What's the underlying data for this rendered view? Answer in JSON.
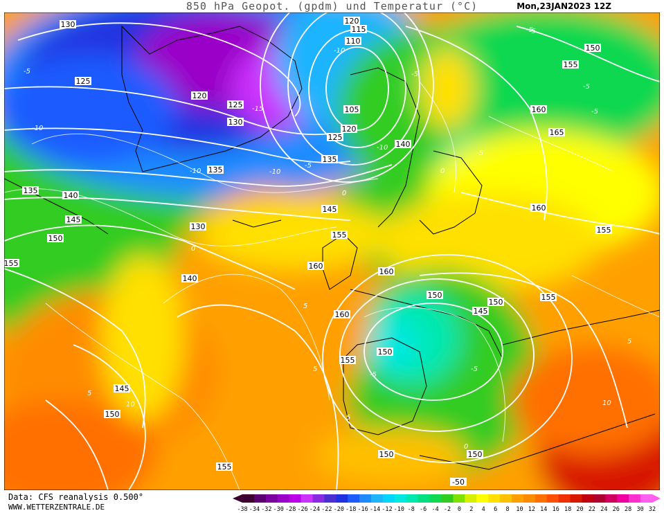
{
  "header": {
    "title": "850 hPa Geopot. (gpdm) und Temperatur (°C)",
    "date": "Mon,23JAN2023 12Z"
  },
  "footer": {
    "data_source": "Data: CFS reanalysis 0.500°",
    "website": "WWW.WETTERZENTRALE.DE"
  },
  "legend": {
    "ticks": [
      "-38",
      "-34",
      "-32",
      "-30",
      "-28",
      "-26",
      "-24",
      "-22",
      "-20",
      "-18",
      "-16",
      "-14",
      "-12",
      "-10",
      "-8",
      "-6",
      "-4",
      "-2",
      "0",
      "2",
      "4",
      "6",
      "8",
      "10",
      "12",
      "14",
      "16",
      "18",
      "20",
      "22",
      "24",
      "26",
      "28",
      "30",
      "32"
    ],
    "colors": [
      "#3d0030",
      "#5a0070",
      "#7a00a0",
      "#9a00c8",
      "#bb00e8",
      "#cc33ff",
      "#8a2be2",
      "#4b2fd0",
      "#2030e0",
      "#1e5cff",
      "#1e8cff",
      "#1eb4ff",
      "#00d4ff",
      "#00e8e0",
      "#00e8b0",
      "#00e080",
      "#10d850",
      "#30cc20",
      "#80e000",
      "#d8f000",
      "#ffff00",
      "#ffe000",
      "#ffc000",
      "#ffa000",
      "#ff8c00",
      "#ff7000",
      "#ff5000",
      "#f03000",
      "#d81800",
      "#c00010",
      "#b00030",
      "#d00060",
      "#f000a0",
      "#ff30d0",
      "#ff60f0"
    ]
  },
  "contour_labels": {
    "geopotential": [
      "130",
      "125",
      "120",
      "125",
      "130",
      "135",
      "120",
      "115",
      "110",
      "105",
      "120",
      "125",
      "135",
      "140",
      "150",
      "155",
      "160",
      "165",
      "160",
      "155",
      "135",
      "140",
      "145",
      "150",
      "155",
      "130",
      "140",
      "145",
      "155",
      "160",
      "160",
      "155",
      "150",
      "145",
      "150",
      "155",
      "145",
      "150",
      "155",
      "150",
      "150",
      "150",
      "160"
    ],
    "temperature": [
      "-5",
      "-10",
      "-10",
      "-5",
      "-15",
      "-10",
      "-10",
      "-5",
      "0",
      "-5",
      "0",
      "-5",
      "-5",
      "-10",
      "-5",
      "-5",
      "5",
      "10",
      "5",
      "10",
      "5",
      "5",
      "-5",
      "0",
      "-5",
      "0",
      "5",
      "-50"
    ]
  }
}
